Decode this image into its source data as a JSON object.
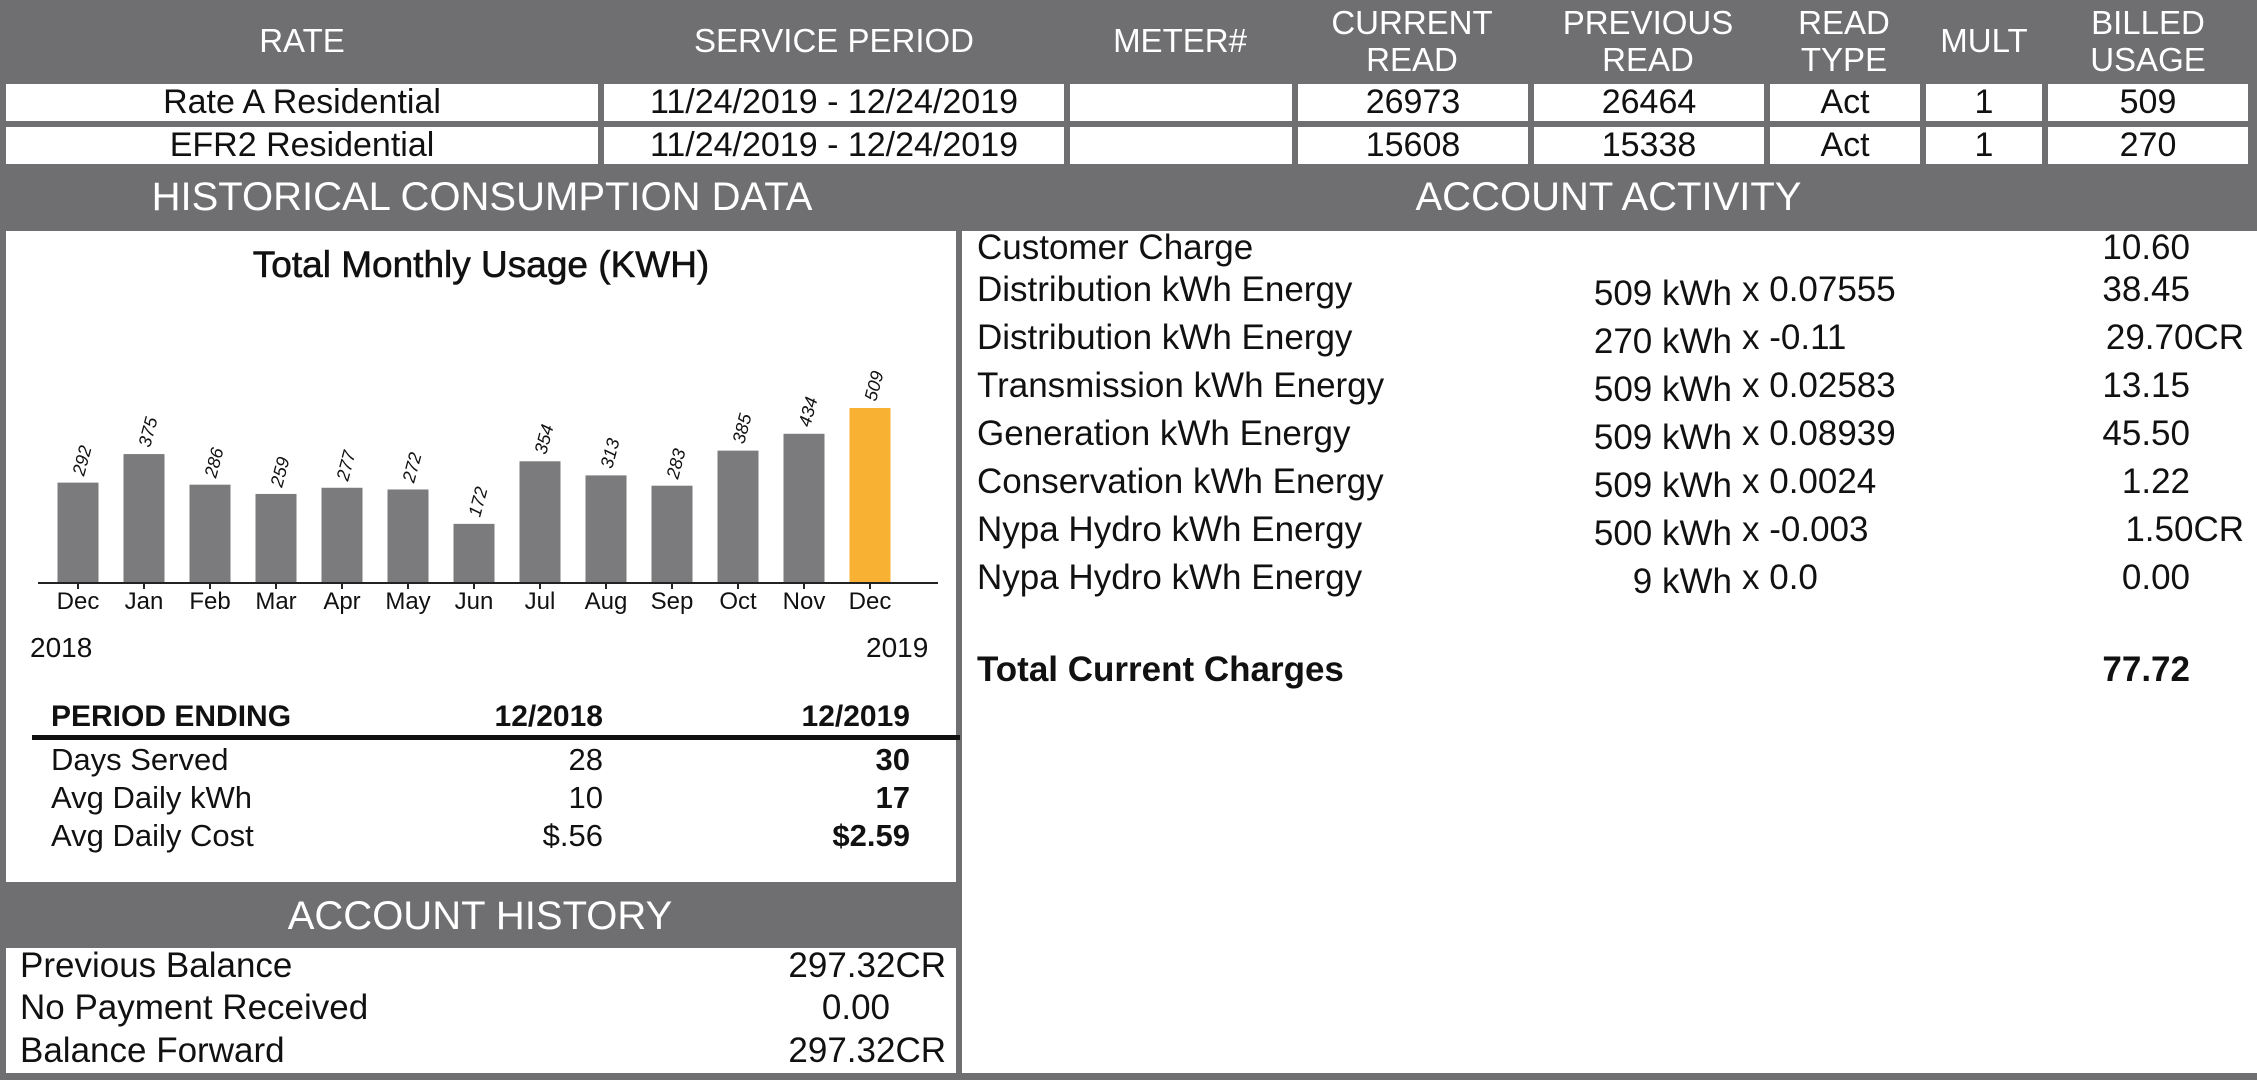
{
  "meter_table": {
    "headers": {
      "rate": "RATE",
      "service_period": "SERVICE PERIOD",
      "meter": "METER#",
      "current_read_1": "CURRENT",
      "current_read_2": "READ",
      "previous_read_1": "PREVIOUS",
      "previous_read_2": "READ",
      "read_type_1": "READ",
      "read_type_2": "TYPE",
      "mult": "MULT",
      "billed_usage_1": "BILLED",
      "billed_usage_2": "USAGE"
    },
    "rows": [
      {
        "rate": "Rate A Residential",
        "service_period": "11/24/2019 - 12/24/2019",
        "meter": "",
        "current_read": "26973",
        "previous_read": "26464",
        "read_type": "Act",
        "mult": "1",
        "billed_usage": "509"
      },
      {
        "rate": "EFR2 Residential",
        "service_period": "11/24/2019 - 12/24/2019",
        "meter": "",
        "current_read": "15608",
        "previous_read": "15338",
        "read_type": "Act",
        "mult": "1",
        "billed_usage": "270"
      }
    ]
  },
  "historical": {
    "band_title": "HISTORICAL CONSUMPTION DATA",
    "year_start": "2018",
    "year_end": "2019",
    "stats": {
      "period_label": "PERIOD ENDING",
      "col1": "12/2018",
      "col2": "12/2019",
      "rows": [
        {
          "label": "Days Served",
          "v1": "28",
          "v2": "30"
        },
        {
          "label": "Avg Daily kWh",
          "v1": "10",
          "v2": "17"
        },
        {
          "label": "Avg Daily Cost",
          "v1": "$.56",
          "v2": "$2.59"
        }
      ]
    }
  },
  "chart_data": {
    "type": "bar",
    "title": "Total Monthly Usage (KWH)",
    "categories": [
      "Dec",
      "Jan",
      "Feb",
      "Mar",
      "Apr",
      "May",
      "Jun",
      "Jul",
      "Aug",
      "Sep",
      "Oct",
      "Nov",
      "Dec"
    ],
    "values": [
      292,
      375,
      286,
      259,
      277,
      272,
      172,
      354,
      313,
      283,
      385,
      434,
      509
    ],
    "ylim": [
      0,
      509
    ],
    "grid": false,
    "bar_color": "#7b7b7d",
    "highlight_color": "#f8b133",
    "highlight_index": 12
  },
  "account_activity": {
    "band_title": "ACCOUNT ACTIVITY",
    "lines": [
      {
        "label": "Customer Charge",
        "qty": "",
        "rate": "",
        "amount": "10.60"
      },
      {
        "label": "Distribution kWh Energy",
        "qty": "509 kWh",
        "rate": "x 0.07555",
        "amount": "38.45"
      },
      {
        "label": "Distribution kWh Energy",
        "qty": "270 kWh",
        "rate": "x -0.11",
        "amount": "29.70CR"
      },
      {
        "label": "Transmission kWh Energy",
        "qty": "509 kWh",
        "rate": "x 0.02583",
        "amount": "13.15"
      },
      {
        "label": "Generation kWh Energy",
        "qty": "509 kWh",
        "rate": "x 0.08939",
        "amount": "45.50"
      },
      {
        "label": "Conservation kWh Energy",
        "qty": "509 kWh",
        "rate": "x 0.0024",
        "amount": "1.22"
      },
      {
        "label": "Nypa Hydro kWh Energy",
        "qty": "500 kWh",
        "rate": "x -0.003",
        "amount": "1.50CR"
      },
      {
        "label": "Nypa Hydro kWh Energy",
        "qty": "9 kWh",
        "rate": "x 0.0",
        "amount": "0.00"
      }
    ],
    "total_label": "Total Current Charges",
    "total_amount": "77.72"
  },
  "account_history": {
    "band_title": "ACCOUNT HISTORY",
    "rows": [
      {
        "label": "Previous Balance",
        "amount": "297.32CR"
      },
      {
        "label": "No Payment Received",
        "amount": "0.00"
      },
      {
        "label": "Balance Forward",
        "amount": "297.32CR"
      }
    ]
  },
  "colors": {
    "band_gray": "#6f6f71",
    "bar_gray": "#7b7b7d",
    "highlight_orange": "#f8b133"
  }
}
